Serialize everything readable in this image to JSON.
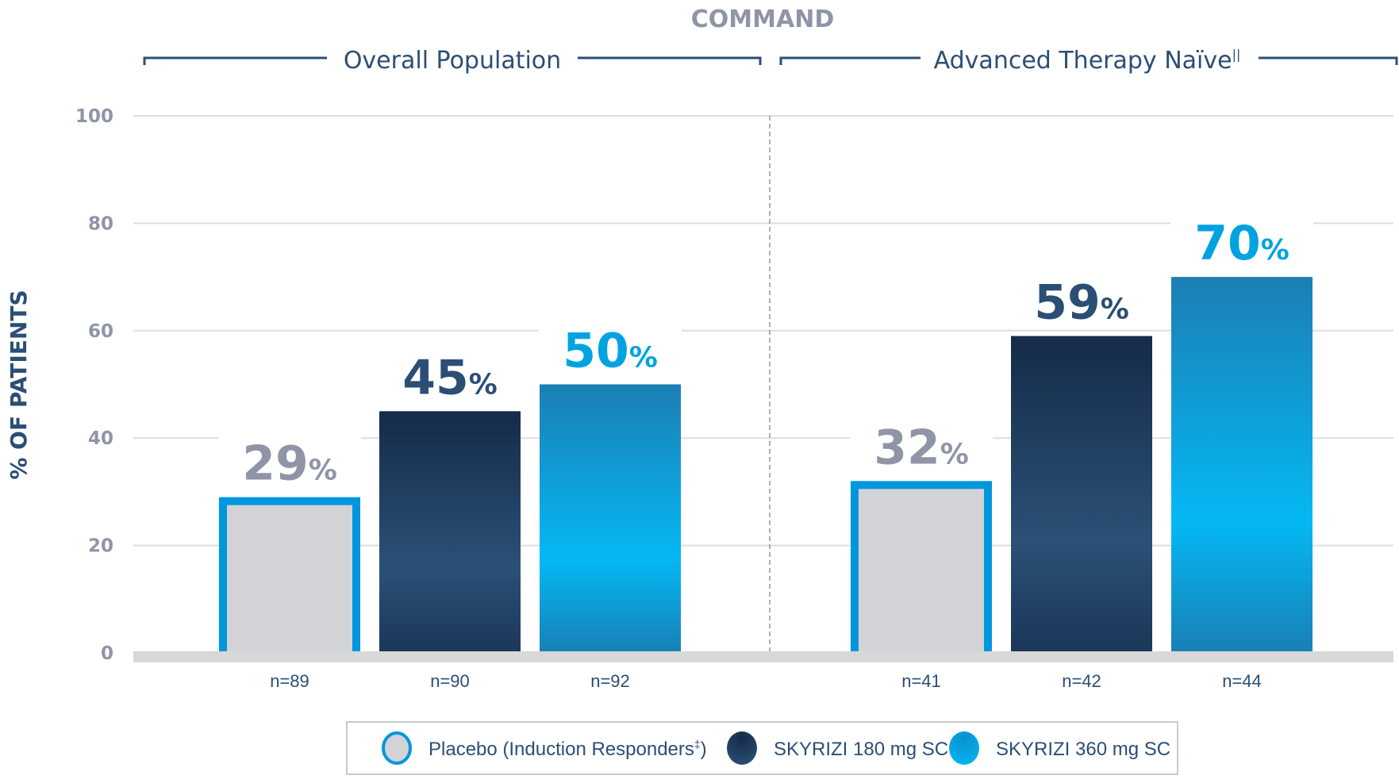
{
  "chart_data": {
    "type": "bar",
    "title": "COMMAND",
    "ylabel": "% OF PATIENTS",
    "xlabel": "",
    "ylim": [
      0,
      100
    ],
    "yticks": [
      0,
      20,
      40,
      60,
      80,
      100
    ],
    "grid": true,
    "groups": [
      {
        "label": "Overall Population",
        "superscript": "",
        "bars": [
          {
            "series": "Placebo (Induction Responders‡)",
            "value": 29,
            "label": "29",
            "n": "n=89"
          },
          {
            "series": "SKYRIZI 180 mg SC",
            "value": 45,
            "label": "45",
            "n": "n=90"
          },
          {
            "series": "SKYRIZI 360 mg SC",
            "value": 50,
            "label": "50",
            "n": "n=92"
          }
        ]
      },
      {
        "label": "Advanced Therapy Naïve",
        "superscript": "||",
        "bars": [
          {
            "series": "Placebo (Induction Responders‡)",
            "value": 32,
            "label": "32",
            "n": "n=41"
          },
          {
            "series": "SKYRIZI 180 mg SC",
            "value": 59,
            "label": "59",
            "n": "n=42"
          },
          {
            "series": "SKYRIZI 360 mg SC",
            "value": 70,
            "label": "70",
            "n": "n=44"
          }
        ]
      }
    ],
    "percent_sign": "%",
    "series": [
      {
        "name": "Placebo (Induction Responders",
        "sup": "‡",
        "suffix": ")",
        "key": "placebo"
      },
      {
        "name": "SKYRIZI 180 mg SC",
        "sup": "",
        "suffix": "",
        "key": "s180"
      },
      {
        "name": "SKYRIZI 360 mg SC",
        "sup": "",
        "suffix": "",
        "key": "s360"
      }
    ],
    "legend_position": "bottom-center"
  },
  "colors": {
    "placebo_fill": "#d1d3d6",
    "placebo_border": "#0096dc",
    "s180_top": "#152b49",
    "s180_mid": "#2b5176",
    "s180_bottom": "#1b3658",
    "s360_top": "#1b7fb4",
    "s360_mid": "#05b8f4",
    "s360_bottom": "#1880b5",
    "placebo_label": "#8f95a6",
    "s180_label": "#2b4e75",
    "s360_label": "#00a3e0",
    "grid": "#dddddd",
    "baseline": "#d8d8d8",
    "bracket": "#2b4e75",
    "divider": "#8f95a6"
  }
}
